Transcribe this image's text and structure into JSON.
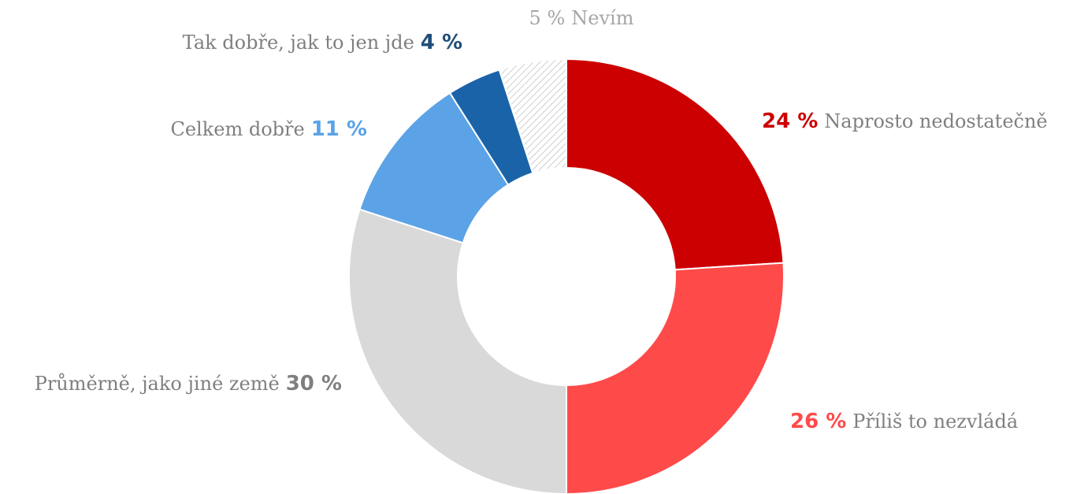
{
  "chart_data": {
    "type": "pie",
    "title": "",
    "donut": true,
    "slices": [
      {
        "label": "Naprosto nedostatečně",
        "value": 24,
        "value_text": "24 %",
        "color": "#cc0000",
        "pattern": false
      },
      {
        "label": "Příliš to nezvládá",
        "value": 26,
        "value_text": "26 %",
        "color": "#ff4a4a",
        "pattern": false
      },
      {
        "label": "Průměrně, jako jiné země",
        "value": 30,
        "value_text": "30 %",
        "color": "#d9d9d9",
        "value_color": "#7f7f7f",
        "pattern": false
      },
      {
        "label": "Celkem dobře",
        "value": 11,
        "value_text": "11 %",
        "color": "#5ba3e6",
        "pattern": false
      },
      {
        "label": "Tak dobře, jak to jen jde",
        "value": 4,
        "value_text": "4 %",
        "color": "#1a63a8",
        "value_color": "#1f4e79",
        "pattern": false
      },
      {
        "label": "Nevím",
        "value": 5,
        "value_text": "5 %",
        "color": "#c8c8c8",
        "label_color": "#a6a6a6",
        "pattern": true
      }
    ]
  }
}
